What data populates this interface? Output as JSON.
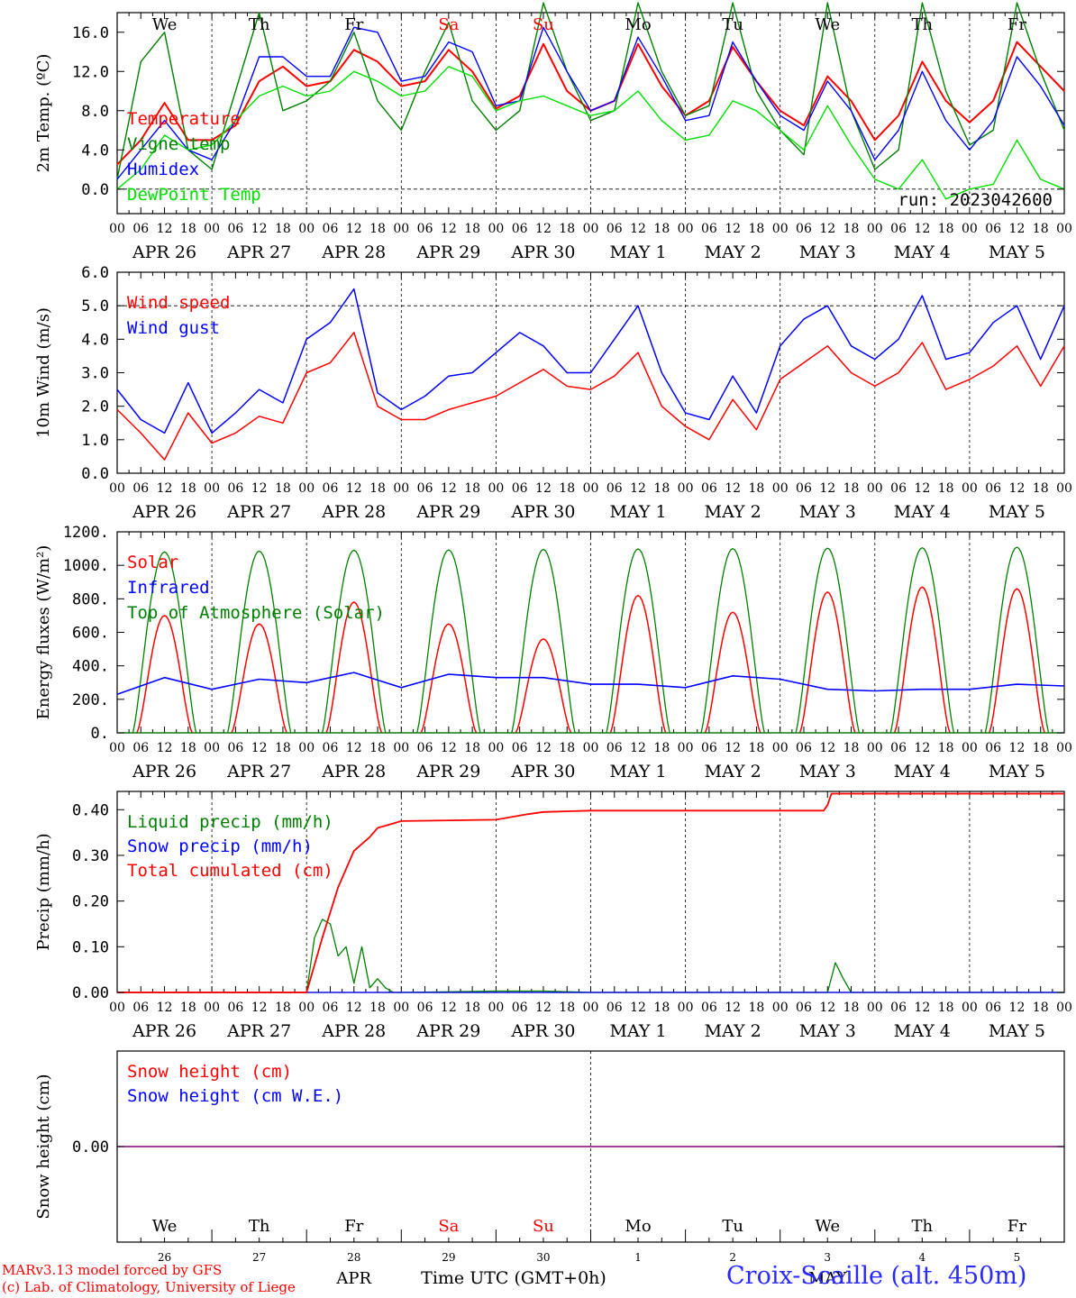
{
  "chart_data": [
    {
      "type": "line",
      "ylabel": "2m Temp. (ºC)",
      "ylim": [
        -2.5,
        18.0
      ],
      "yticks": [
        "0.0",
        "4.0",
        "8.0",
        "12.0",
        "16.0"
      ],
      "yticks_values": [
        0,
        4,
        8,
        12,
        16
      ],
      "dashed_hline": 0,
      "annotation": "run: 2023042600",
      "weekday_labels": [
        "We",
        "Th",
        "Fr",
        "Sa",
        "Su",
        "Mo",
        "Tu",
        "We",
        "Th",
        "Fr"
      ],
      "weekday_colors": [
        "#000000",
        "#000000",
        "#000000",
        "#ff0000",
        "#ff0000",
        "#000000",
        "#000000",
        "#000000",
        "#000000",
        "#000000"
      ],
      "x_hours": [
        0,
        6,
        12,
        18,
        24,
        30,
        36,
        42,
        48,
        54,
        60,
        66,
        72,
        78,
        84,
        90,
        96,
        102,
        108,
        114,
        120,
        126,
        132,
        138,
        144,
        150,
        156,
        162,
        168,
        174,
        180,
        186,
        192,
        198,
        204,
        210,
        216,
        222,
        228,
        234,
        240
      ],
      "series": [
        {
          "name": "Temperature",
          "color": "#ff0000",
          "values": [
            2.5,
            5.0,
            8.8,
            5.0,
            5.0,
            6.5,
            11.0,
            12.5,
            10.5,
            11.0,
            14.2,
            13.0,
            10.5,
            11.0,
            14.2,
            12.0,
            8.2,
            9.5,
            14.8,
            10.0,
            8.0,
            9.0,
            14.8,
            10.5,
            7.5,
            9.0,
            14.5,
            11.0,
            8.0,
            6.5,
            11.5,
            9.0,
            5.0,
            7.5,
            13.0,
            9.0,
            6.8,
            9.0,
            15.0,
            12.5,
            10.0
          ]
        },
        {
          "name": "Vigne temp",
          "color": "#008000",
          "values": [
            1.0,
            13.0,
            16.0,
            4.0,
            2.0,
            10.0,
            18.0,
            8.0,
            9.0,
            11.0,
            16.0,
            9.0,
            6.0,
            12.0,
            17.0,
            9.0,
            6.0,
            8.0,
            19.0,
            12.0,
            7.0,
            8.0,
            19.0,
            12.0,
            7.5,
            8.5,
            19.0,
            10.0,
            6.0,
            3.5,
            19.0,
            8.0,
            2.0,
            4.0,
            19.0,
            10.0,
            4.5,
            6.0,
            19.0,
            12.0,
            6.0
          ]
        },
        {
          "name": "Humidex",
          "color": "#0000ff",
          "values": [
            1.0,
            4.0,
            7.0,
            4.0,
            3.0,
            7.0,
            13.5,
            13.5,
            11.5,
            11.5,
            16.5,
            16.0,
            11.0,
            11.5,
            15.0,
            14.0,
            8.5,
            9.0,
            16.5,
            12.0,
            8.0,
            9.0,
            15.5,
            11.5,
            7.0,
            7.5,
            15.0,
            11.0,
            7.5,
            6.0,
            11.0,
            8.0,
            3.0,
            6.0,
            12.0,
            7.0,
            4.0,
            7.0,
            13.5,
            10.5,
            6.5
          ]
        },
        {
          "name": "DewPoint Temp",
          "color": "#00e000",
          "values": [
            0.0,
            2.0,
            5.5,
            4.0,
            4.5,
            7.0,
            9.5,
            10.5,
            9.5,
            10.0,
            12.0,
            11.0,
            9.5,
            10.0,
            12.5,
            11.5,
            8.0,
            9.0,
            9.5,
            8.5,
            7.5,
            8.0,
            10.0,
            7.0,
            5.0,
            5.5,
            9.0,
            8.0,
            6.0,
            4.0,
            8.5,
            4.5,
            1.0,
            0.0,
            3.0,
            -1.0,
            0.0,
            0.5,
            5.0,
            1.0,
            0.0
          ]
        }
      ]
    },
    {
      "type": "line",
      "ylabel": "10m Wind (m/s)",
      "ylim": [
        0,
        6.0
      ],
      "yticks": [
        "0.0",
        "1.0",
        "2.0",
        "3.0",
        "4.0",
        "5.0",
        "6.0"
      ],
      "yticks_values": [
        0,
        1,
        2,
        3,
        4,
        5,
        6
      ],
      "dashed_hline": 5,
      "x_hours": [
        0,
        6,
        12,
        18,
        24,
        30,
        36,
        42,
        48,
        54,
        60,
        66,
        72,
        78,
        84,
        90,
        96,
        102,
        108,
        114,
        120,
        126,
        132,
        138,
        144,
        150,
        156,
        162,
        168,
        174,
        180,
        186,
        192,
        198,
        204,
        210,
        216,
        222,
        228,
        234,
        240
      ],
      "series": [
        {
          "name": "Wind speed",
          "color": "#ff0000",
          "values": [
            1.9,
            1.2,
            0.4,
            1.8,
            0.9,
            1.2,
            1.7,
            1.5,
            3.0,
            3.3,
            4.2,
            2.0,
            1.6,
            1.6,
            1.9,
            2.1,
            2.3,
            2.7,
            3.1,
            2.6,
            2.5,
            2.9,
            3.6,
            2.0,
            1.4,
            1.0,
            2.2,
            1.3,
            2.8,
            3.3,
            3.8,
            3.0,
            2.6,
            3.0,
            3.9,
            2.5,
            2.8,
            3.2,
            3.8,
            2.6,
            3.8
          ]
        },
        {
          "name": "Wind gust",
          "color": "#0000ff",
          "values": [
            2.5,
            1.6,
            1.2,
            2.7,
            1.2,
            1.8,
            2.5,
            2.1,
            4.0,
            4.5,
            5.5,
            2.4,
            1.9,
            2.3,
            2.9,
            3.0,
            3.6,
            4.2,
            3.8,
            3.0,
            3.0,
            4.0,
            5.0,
            3.0,
            1.8,
            1.6,
            2.9,
            1.8,
            3.8,
            4.6,
            5.0,
            3.8,
            3.4,
            4.0,
            5.3,
            3.4,
            3.6,
            4.5,
            5.0,
            3.4,
            5.0
          ]
        }
      ]
    },
    {
      "type": "line",
      "ylabel": "Energy fluxes (W/m²)",
      "ylim": [
        0,
        1200
      ],
      "yticks": [
        "0.",
        "200.",
        "400.",
        "600.",
        "800.",
        "1000.",
        "1200."
      ],
      "yticks_values": [
        0,
        200,
        400,
        600,
        800,
        1000,
        1200
      ],
      "series": [
        {
          "name": "Solar",
          "color": "#ff0000",
          "daily_peak": [
            700,
            650,
            780,
            650,
            560,
            820,
            720,
            840,
            870,
            860
          ]
        },
        {
          "name": "Infrared",
          "color": "#0000ff",
          "x_hours": [
            0,
            12,
            24,
            36,
            48,
            60,
            72,
            84,
            96,
            108,
            120,
            132,
            144,
            156,
            168,
            180,
            192,
            204,
            216,
            228,
            240
          ],
          "values": [
            230,
            330,
            260,
            320,
            300,
            360,
            270,
            350,
            330,
            330,
            290,
            290,
            270,
            340,
            320,
            260,
            250,
            260,
            260,
            290,
            280
          ]
        },
        {
          "name": "Top of Atmosphere (Solar)",
          "color": "#008000",
          "daily_peak": [
            1080,
            1085,
            1090,
            1092,
            1095,
            1098,
            1100,
            1102,
            1105,
            1108
          ]
        }
      ]
    },
    {
      "type": "line",
      "ylabel": "Precip (mm/h)",
      "ylim": [
        0,
        0.44
      ],
      "yticks": [
        "0.00",
        "0.10",
        "0.20",
        "0.30",
        "0.40"
      ],
      "yticks_values": [
        0,
        0.1,
        0.2,
        0.3,
        0.4
      ],
      "series": [
        {
          "name": "Liquid precip (mm/h)",
          "color": "#008000",
          "x_hours": [
            0,
            48,
            50,
            52,
            54,
            56,
            58,
            60,
            62,
            64,
            66,
            68,
            70,
            72,
            96,
            108,
            120,
            180,
            182,
            184,
            186,
            240
          ],
          "values": [
            0,
            0,
            0.12,
            0.16,
            0.15,
            0.08,
            0.1,
            0.02,
            0.1,
            0.01,
            0.03,
            0.01,
            0,
            0,
            0.003,
            0.003,
            0,
            0,
            0.065,
            0.03,
            0,
            0
          ]
        },
        {
          "name": "Snow precip (mm/h)",
          "color": "#0000ff",
          "x_hours": [
            0,
            240
          ],
          "values": [
            0,
            0
          ]
        },
        {
          "name": "Total cumulated (cm)",
          "color": "#ff0000",
          "x_hours": [
            0,
            48,
            52,
            56,
            60,
            64,
            66,
            70,
            72,
            96,
            104,
            108,
            120,
            144,
            168,
            179,
            180,
            181,
            184,
            240
          ],
          "values": [
            0,
            0,
            0.12,
            0.23,
            0.31,
            0.34,
            0.36,
            0.37,
            0.375,
            0.378,
            0.39,
            0.395,
            0.398,
            0.398,
            0.398,
            0.398,
            0.41,
            0.435,
            0.435,
            0.435
          ]
        }
      ]
    },
    {
      "type": "line",
      "ylabel": "Snow height (cm)",
      "yticks": [
        "0.00"
      ],
      "yticks_values": [
        0
      ],
      "series": [
        {
          "name": "Snow height (cm)",
          "color": "#ff0000",
          "x_hours": [
            0,
            240
          ],
          "values": [
            0,
            0
          ]
        },
        {
          "name": "Snow height (cm W.E.)",
          "color": "#0000ff",
          "x_hours": [
            0,
            240
          ],
          "values": [
            0,
            0
          ]
        }
      ],
      "weekday_labels": [
        "We",
        "Th",
        "Fr",
        "Sa",
        "Su",
        "Mo",
        "Tu",
        "We",
        "Th",
        "Fr"
      ],
      "day_numbers": [
        "26",
        "27",
        "28",
        "29",
        "30",
        "1",
        "2",
        "3",
        "4",
        "5"
      ],
      "month_labels": [
        "APR",
        "MAY"
      ],
      "xlabel": "Time UTC (GMT+0h)"
    }
  ],
  "hour_ticks": [
    "00",
    "06",
    "12",
    "18"
  ],
  "final_hour_tick": "00",
  "date_labels": [
    "APR 26",
    "APR 27",
    "APR 28",
    "APR 29",
    "APR 30",
    "MAY  1",
    "MAY  2",
    "MAY  3",
    "MAY  4",
    "MAY  5"
  ],
  "footer": {
    "credit_line1": "MARv3.13 model forced by GFS",
    "credit_line2": "(c) Lab. of Climatology, University of Liege",
    "station": "Croix-Scaille (alt. 450m)"
  },
  "colors": {
    "red": "#ff0000",
    "green": "#008000",
    "blue": "#0000ff",
    "lightgreen": "#00e000",
    "purple": "#800080"
  }
}
